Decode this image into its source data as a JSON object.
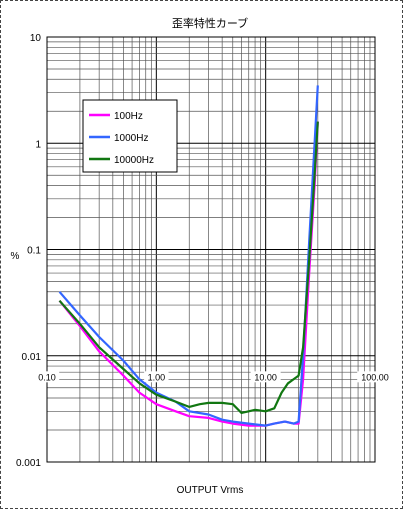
{
  "chart_data": {
    "type": "line",
    "title": "歪率特性カーブ",
    "xlabel": "OUTPUT  Vrms",
    "ylabel": "%",
    "x_scale": "log",
    "y_scale": "log",
    "xlim": [
      0.1,
      100
    ],
    "ylim": [
      0.001,
      10
    ],
    "x_ticks": [
      0.1,
      1,
      10,
      100
    ],
    "x_tick_labels": [
      "0.10",
      "1.00",
      "10.00",
      "100.00"
    ],
    "y_ticks": [
      10,
      1,
      0.1,
      0.01,
      0.001
    ],
    "y_tick_labels": [
      "10",
      "1",
      "0.1",
      "0.01",
      "0.001"
    ],
    "grid": true,
    "legend_position": "top-left inside",
    "series": [
      {
        "name": "100Hz",
        "color": "#ff00ff",
        "points": [
          [
            0.13,
            0.033
          ],
          [
            0.2,
            0.019
          ],
          [
            0.3,
            0.011
          ],
          [
            0.5,
            0.0065
          ],
          [
            0.7,
            0.0045
          ],
          [
            1.0,
            0.0035
          ],
          [
            1.5,
            0.003
          ],
          [
            2.0,
            0.0027
          ],
          [
            3.0,
            0.0026
          ],
          [
            4.0,
            0.0024
          ],
          [
            5.0,
            0.0023
          ],
          [
            7.0,
            0.0022
          ],
          [
            10.0,
            0.0022
          ],
          [
            12.0,
            0.0023
          ],
          [
            15.0,
            0.0024
          ],
          [
            18.0,
            0.0023
          ],
          [
            20.0,
            0.0023
          ],
          [
            22.0,
            0.006
          ],
          [
            25.0,
            0.06
          ],
          [
            28.0,
            0.4
          ],
          [
            30.0,
            1.6
          ]
        ]
      },
      {
        "name": "1000Hz",
        "color": "#3366ff",
        "points": [
          [
            0.13,
            0.04
          ],
          [
            0.2,
            0.024
          ],
          [
            0.3,
            0.015
          ],
          [
            0.5,
            0.009
          ],
          [
            0.7,
            0.006
          ],
          [
            1.0,
            0.0045
          ],
          [
            1.5,
            0.0037
          ],
          [
            2.0,
            0.003
          ],
          [
            3.0,
            0.0028
          ],
          [
            4.0,
            0.0025
          ],
          [
            5.0,
            0.0024
          ],
          [
            7.0,
            0.0023
          ],
          [
            10.0,
            0.0022
          ],
          [
            12.0,
            0.0023
          ],
          [
            15.0,
            0.0024
          ],
          [
            18.0,
            0.0023
          ],
          [
            20.0,
            0.0024
          ],
          [
            22.0,
            0.01
          ],
          [
            25.0,
            0.12
          ],
          [
            28.0,
            1.0
          ],
          [
            30.0,
            3.5
          ]
        ]
      },
      {
        "name": "10000Hz",
        "color": "#117711",
        "points": [
          [
            0.13,
            0.033
          ],
          [
            0.2,
            0.02
          ],
          [
            0.3,
            0.012
          ],
          [
            0.5,
            0.0075
          ],
          [
            0.7,
            0.0055
          ],
          [
            1.0,
            0.0043
          ],
          [
            1.5,
            0.0037
          ],
          [
            2.0,
            0.0033
          ],
          [
            2.5,
            0.0035
          ],
          [
            3.0,
            0.0036
          ],
          [
            4.0,
            0.0036
          ],
          [
            5.0,
            0.0035
          ],
          [
            6.0,
            0.0029
          ],
          [
            7.0,
            0.003
          ],
          [
            8.0,
            0.0031
          ],
          [
            10.0,
            0.003
          ],
          [
            12.0,
            0.0032
          ],
          [
            14.0,
            0.0045
          ],
          [
            16.0,
            0.0055
          ],
          [
            20.0,
            0.0065
          ],
          [
            22.0,
            0.012
          ],
          [
            25.0,
            0.08
          ],
          [
            28.0,
            0.5
          ],
          [
            30.0,
            1.6
          ]
        ]
      }
    ]
  }
}
